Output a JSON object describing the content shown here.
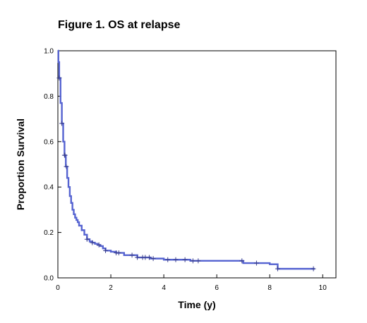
{
  "chart_data": {
    "type": "line",
    "subtype": "kaplan-meier",
    "title": "Figure 1. OS at relapse",
    "xlabel": "Time (y)",
    "ylabel": "Proportion Survival",
    "xlim": [
      0,
      10.5
    ],
    "ylim": [
      0,
      1.0
    ],
    "xticks": [
      0,
      2,
      4,
      6,
      8,
      10
    ],
    "xtick_labels": [
      "0",
      "2",
      "4",
      "6",
      "8",
      "10"
    ],
    "yticks": [
      0.0,
      0.2,
      0.4,
      0.6,
      0.8,
      1.0
    ],
    "ytick_labels": [
      "0.0",
      "0.2",
      "0.4",
      "0.6",
      "0.8",
      "1.0"
    ],
    "grid": false,
    "legend": "none",
    "colors": {
      "curve": "#5563d1",
      "censor": "#3a3f8c",
      "axis": "#000000",
      "background": "#ffffff"
    },
    "series": [
      {
        "x": [
          0,
          0.02,
          0.05,
          0.1,
          0.15,
          0.2,
          0.25,
          0.3,
          0.35,
          0.4,
          0.45,
          0.5,
          0.55,
          0.6,
          0.65,
          0.7,
          0.75,
          0.8,
          0.9,
          1.0,
          1.1,
          1.2,
          1.3,
          1.4,
          1.5,
          1.6,
          1.7,
          1.8,
          2.0,
          2.2,
          2.5,
          3.0,
          3.5,
          4.0,
          4.5,
          5.0,
          5.5,
          6.0,
          6.5,
          7.0,
          7.5,
          8.0,
          8.3,
          9.0,
          9.7
        ],
        "y": [
          1.0,
          0.95,
          0.88,
          0.77,
          0.68,
          0.6,
          0.54,
          0.49,
          0.44,
          0.4,
          0.36,
          0.33,
          0.3,
          0.28,
          0.265,
          0.255,
          0.245,
          0.23,
          0.21,
          0.19,
          0.17,
          0.16,
          0.155,
          0.15,
          0.145,
          0.14,
          0.13,
          0.12,
          0.115,
          0.11,
          0.1,
          0.09,
          0.085,
          0.08,
          0.08,
          0.075,
          0.075,
          0.075,
          0.075,
          0.065,
          0.065,
          0.06,
          0.04,
          0.04,
          0.04
        ]
      }
    ],
    "censor_x": [
      0.05,
      0.15,
      0.25,
      0.27,
      0.32,
      1.1,
      1.3,
      1.55,
      1.8,
      2.2,
      2.3,
      2.8,
      3.0,
      3.2,
      3.3,
      3.45,
      3.6,
      4.15,
      4.45,
      4.8,
      5.1,
      5.3,
      6.95,
      7.5,
      8.3,
      9.65
    ]
  }
}
